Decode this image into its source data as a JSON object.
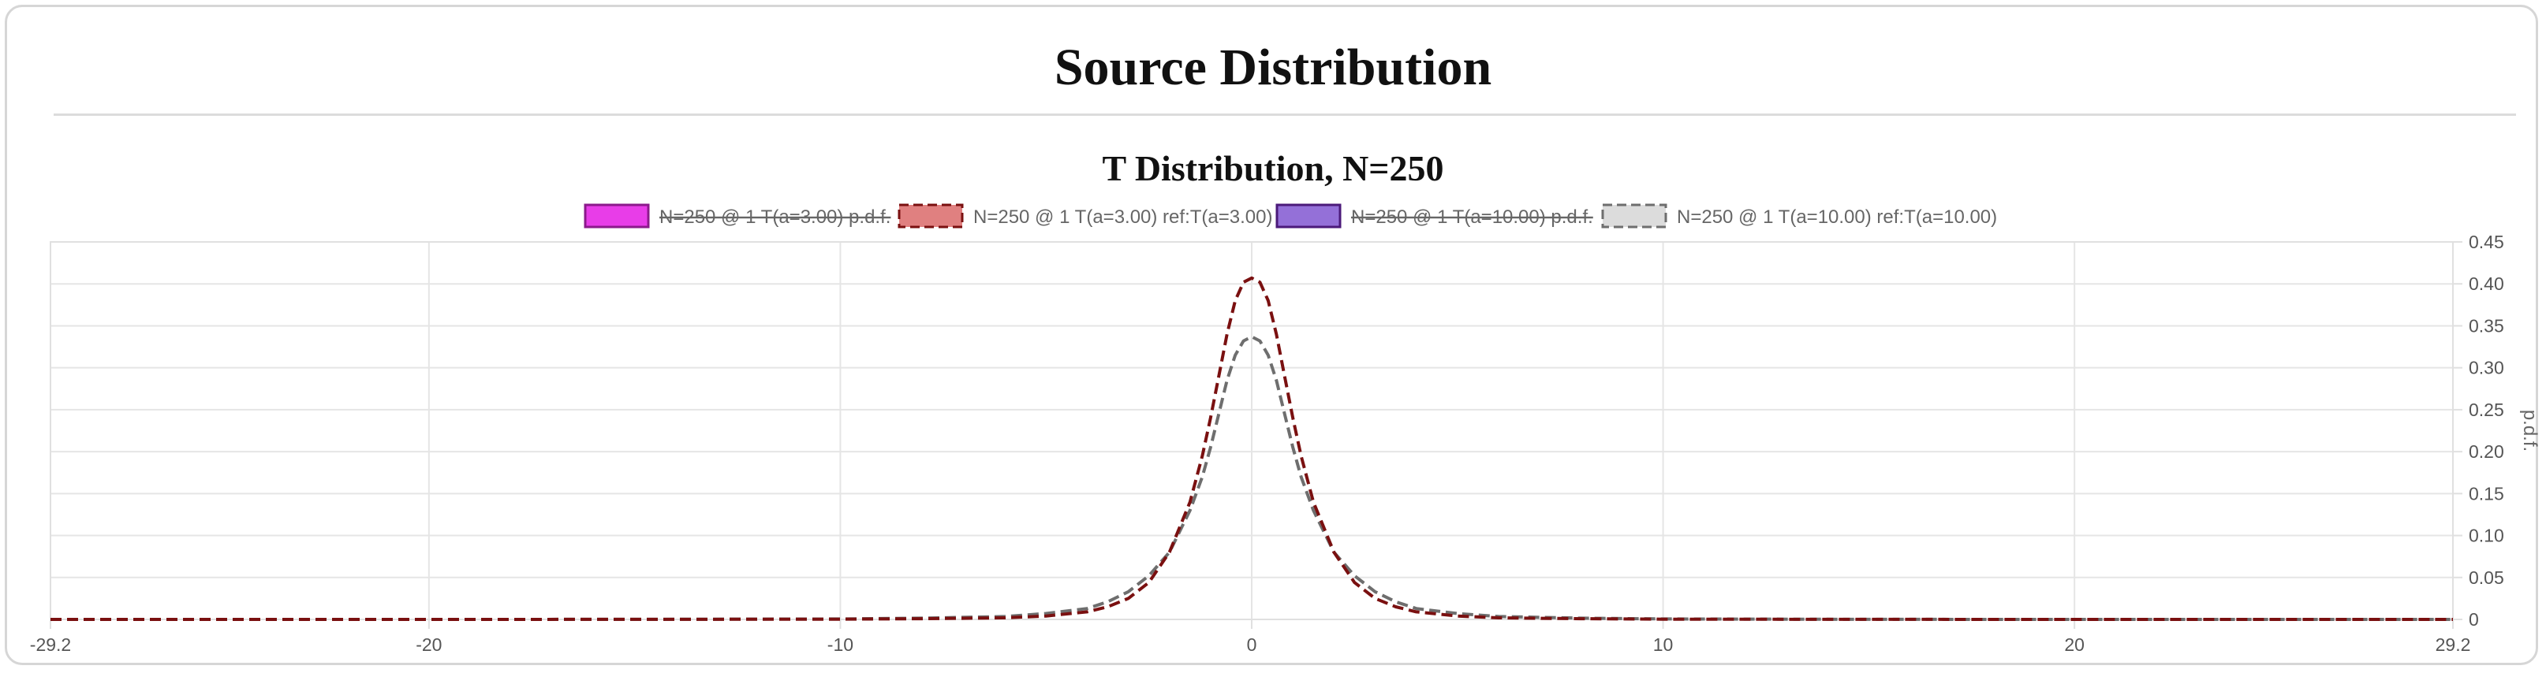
{
  "page": {
    "title": "Source Distribution"
  },
  "chart_data": {
    "type": "line",
    "title": "T Distribution, N=250",
    "xlabel": "",
    "ylabel": "p.d.f.",
    "xlim": [
      -29.2,
      29.2
    ],
    "ylim": [
      0,
      0.45
    ],
    "x_ticks": [
      "-29.2",
      "-20",
      "-10",
      "0",
      "10",
      "20",
      "29.2"
    ],
    "x_tick_values": [
      -29.2,
      -20,
      -10,
      0,
      10,
      20,
      29.2
    ],
    "y_ticks": [
      "0",
      "0.05",
      "0.10",
      "0.15",
      "0.20",
      "0.25",
      "0.30",
      "0.35",
      "0.40",
      "0.45"
    ],
    "y_tick_values": [
      0,
      0.05,
      0.1,
      0.15,
      0.2,
      0.25,
      0.3,
      0.35,
      0.4,
      0.45
    ],
    "y_axis_position": "right",
    "grid": true,
    "legend_position": "top",
    "series": [
      {
        "name": "N=250 @ 1 T(a=3.00) p.d.f.",
        "hidden": true,
        "dashed": false,
        "color": "#8b1a8b",
        "fill": "#e83de8",
        "x": [],
        "y": []
      },
      {
        "name": "N=250 @ 1 T(a=3.00) ref:T(a=3.00)",
        "hidden": false,
        "dashed": true,
        "color": "#7a1010",
        "fill": "#e08080",
        "x": [
          -29.2,
          -20,
          -15,
          -10,
          -8,
          -6,
          -5,
          -4,
          -3.5,
          -3,
          -2.5,
          -2,
          -1.5,
          -1.2,
          -1,
          -0.8,
          -0.6,
          -0.4,
          -0.2,
          0,
          0.2,
          0.4,
          0.6,
          0.8,
          1,
          1.2,
          1.5,
          2,
          2.5,
          3,
          3.5,
          4,
          5,
          6,
          8,
          10,
          15,
          20,
          29.2
        ],
        "y": [
          0.0,
          0.0,
          0.0001,
          0.0003,
          0.0008,
          0.0019,
          0.004,
          0.009,
          0.015,
          0.025,
          0.044,
          0.08,
          0.14,
          0.195,
          0.24,
          0.29,
          0.34,
          0.38,
          0.402,
          0.407,
          0.402,
          0.38,
          0.34,
          0.29,
          0.24,
          0.195,
          0.14,
          0.08,
          0.044,
          0.025,
          0.015,
          0.009,
          0.004,
          0.0019,
          0.0008,
          0.0003,
          0.0001,
          0.0,
          0.0
        ]
      },
      {
        "name": "N=250 @ 1 T(a=10.00) p.d.f.",
        "hidden": true,
        "dashed": false,
        "color": "#4b1a7a",
        "fill": "#9470d8",
        "x": [],
        "y": []
      },
      {
        "name": "N=250 @ 1 T(a=10.00) ref:T(a=10.00)",
        "hidden": false,
        "dashed": true,
        "color": "#6e6e6e",
        "fill": "#dcdcdc",
        "x": [
          -29.2,
          -20,
          -15,
          -10,
          -8,
          -6,
          -5,
          -4,
          -3.5,
          -3,
          -2.5,
          -2,
          -1.5,
          -1.2,
          -1,
          -0.8,
          -0.6,
          -0.4,
          -0.2,
          0,
          0.2,
          0.4,
          0.6,
          0.8,
          1,
          1.2,
          1.5,
          2,
          2.5,
          3,
          3.5,
          4,
          5,
          6,
          8,
          10,
          15,
          20,
          29.2
        ],
        "y": [
          0.0,
          0.0,
          0.0001,
          0.0006,
          0.0015,
          0.0035,
          0.007,
          0.013,
          0.021,
          0.033,
          0.052,
          0.08,
          0.13,
          0.17,
          0.205,
          0.245,
          0.285,
          0.315,
          0.332,
          0.337,
          0.332,
          0.315,
          0.285,
          0.245,
          0.205,
          0.17,
          0.13,
          0.08,
          0.052,
          0.033,
          0.021,
          0.013,
          0.007,
          0.0035,
          0.0015,
          0.0006,
          0.0001,
          0.0,
          0.0
        ]
      }
    ]
  }
}
